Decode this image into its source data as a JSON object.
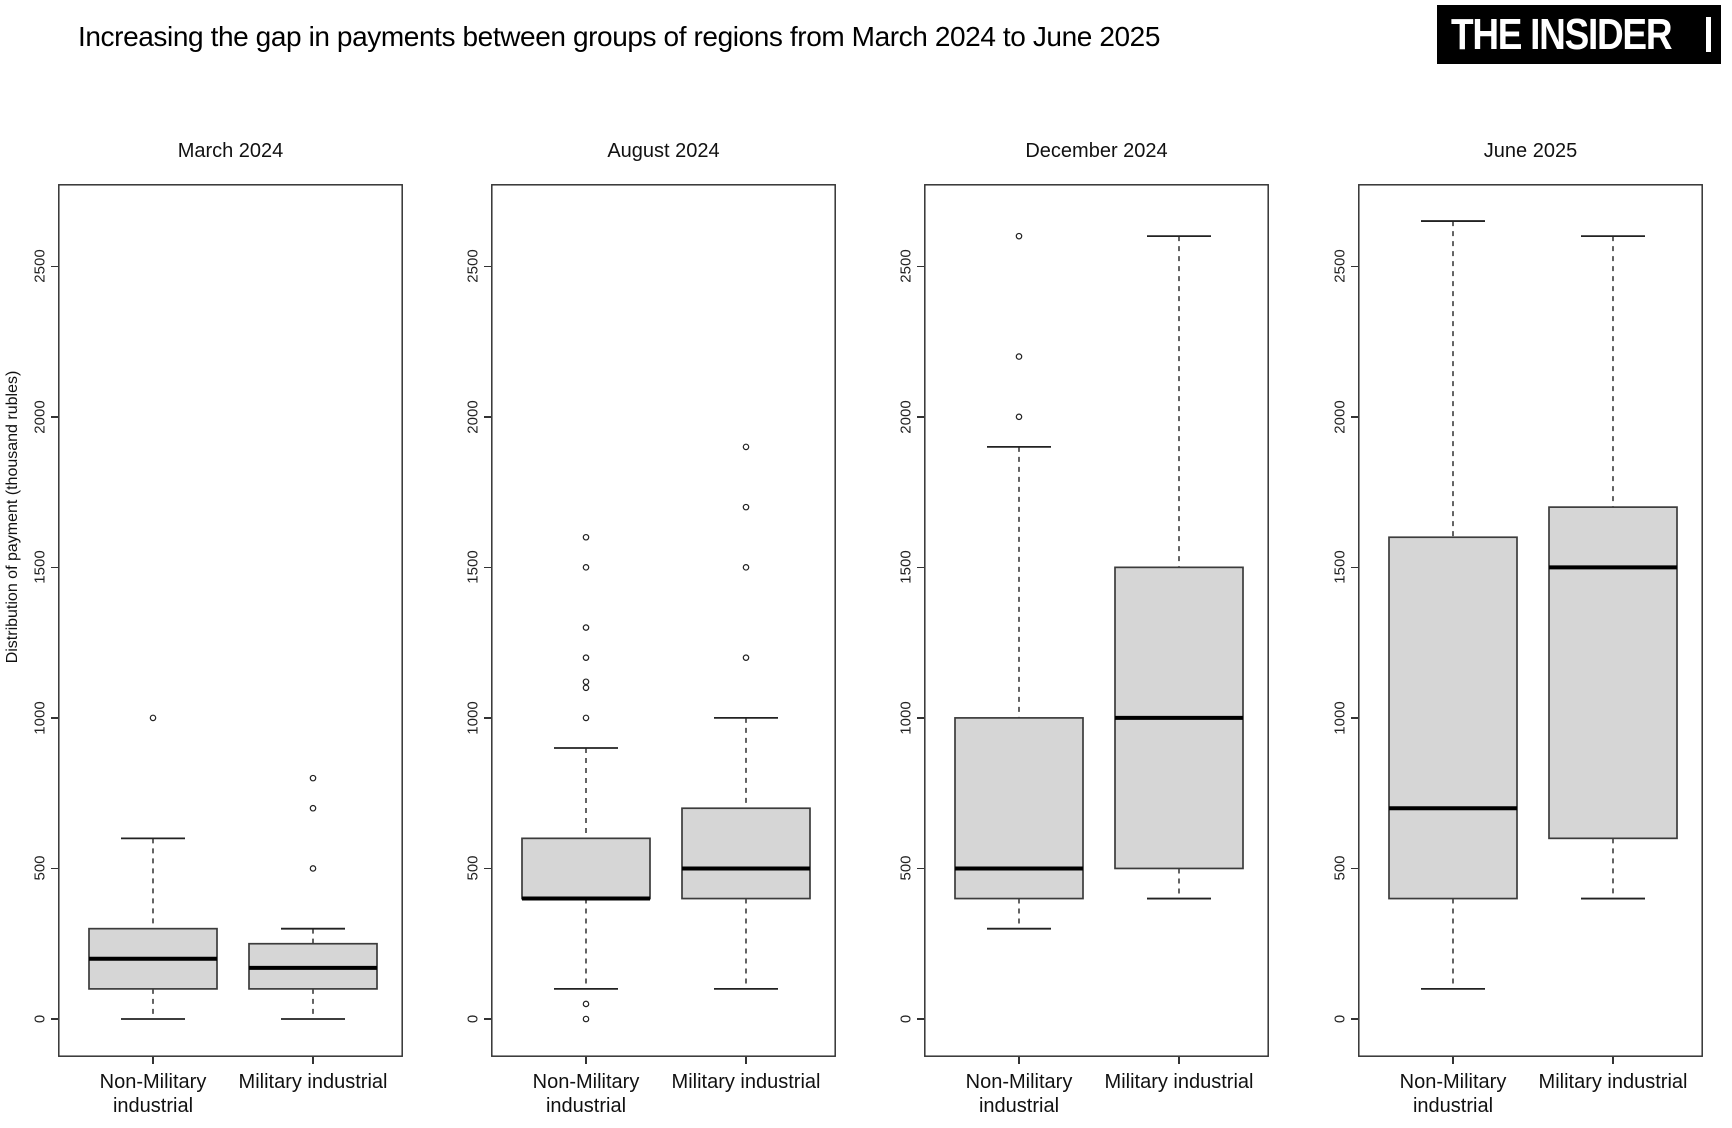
{
  "header": {
    "title": "Increasing the gap in payments between groups of regions from March 2024 to June 2025",
    "logo_text": "THE INSIDER"
  },
  "chart_data": {
    "type": "boxplot",
    "title": "Increasing the gap in payments between groups of regions from March 2024 to June 2025",
    "ylabel": "Distribution of payment (thousand rubles)",
    "y_ticks": [
      0,
      500,
      1000,
      1500,
      2000,
      2500
    ],
    "y_range": [
      -130,
      2780
    ],
    "grid": false,
    "legend": "none",
    "categories": [
      "Non-Military\nindustrial",
      "Military industrial"
    ],
    "panels": [
      {
        "title": "March 2024",
        "boxes": [
          {
            "category": "Non-Military industrial",
            "whisker_low": 0,
            "q1": 100,
            "median": 200,
            "q3": 300,
            "whisker_high": 600,
            "outliers": [
              1000
            ]
          },
          {
            "category": "Military industrial",
            "whisker_low": 0,
            "q1": 100,
            "median": 170,
            "q3": 250,
            "whisker_high": 300,
            "outliers": [
              500,
              700,
              800
            ]
          }
        ]
      },
      {
        "title": "August 2024",
        "boxes": [
          {
            "category": "Non-Military industrial",
            "whisker_low": 100,
            "q1": 400,
            "median": 400,
            "q3": 600,
            "whisker_high": 900,
            "outliers": [
              0,
              50,
              1000,
              1100,
              1120,
              1200,
              1300,
              1500,
              1600
            ]
          },
          {
            "category": "Military industrial",
            "whisker_low": 100,
            "q1": 400,
            "median": 500,
            "q3": 700,
            "whisker_high": 1000,
            "outliers": [
              1200,
              1500,
              1700,
              1900
            ]
          }
        ]
      },
      {
        "title": "December 2024",
        "boxes": [
          {
            "category": "Non-Military industrial",
            "whisker_low": 300,
            "q1": 400,
            "median": 500,
            "q3": 1000,
            "whisker_high": 1900,
            "outliers": [
              2000,
              2200,
              2600
            ]
          },
          {
            "category": "Military industrial",
            "whisker_low": 400,
            "q1": 500,
            "median": 1000,
            "q3": 1500,
            "whisker_high": 2600,
            "outliers": []
          }
        ]
      },
      {
        "title": "June 2025",
        "boxes": [
          {
            "category": "Non-Military industrial",
            "whisker_low": 100,
            "q1": 400,
            "median": 700,
            "q3": 1600,
            "whisker_high": 2650,
            "outliers": []
          },
          {
            "category": "Military industrial",
            "whisker_low": 400,
            "q1": 600,
            "median": 1500,
            "q3": 1700,
            "whisker_high": 2600,
            "outliers": []
          }
        ]
      }
    ],
    "colors": {
      "box_fill": "#d6d6d6",
      "box_stroke": "#3c3c3c",
      "median": "#000000",
      "whisker": "#222222",
      "plot_border": "#333333",
      "logo_bg": "#000000",
      "logo_fg": "#ffffff"
    }
  }
}
